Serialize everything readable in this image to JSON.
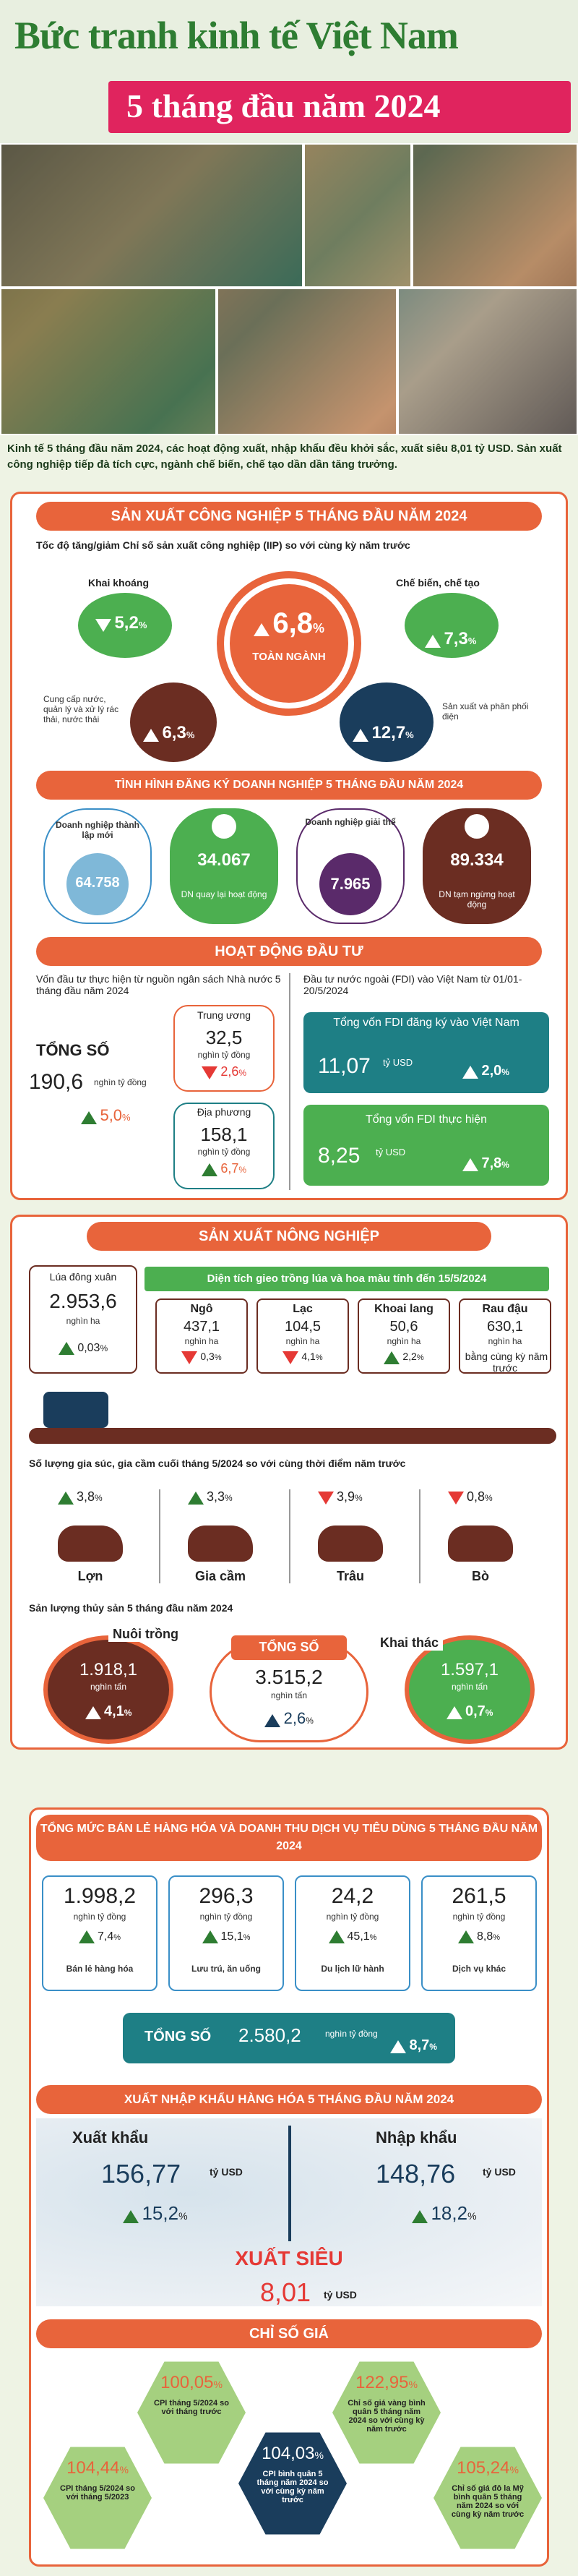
{
  "header": {
    "title": "Bức tranh kinh tế Việt Nam",
    "subtitle": "5 tháng đầu năm 2024",
    "intro": "Kinh tế 5 tháng đầu năm 2024, các hoạt động xuất, nhập khẩu đều khởi sắc, xuất siêu 8,01 tỷ USD. Sản xuất công nghiệp tiếp đà tích cực, ngành chế biến, chế tạo dần dần tăng trưởng."
  },
  "industry": {
    "title": "SẢN XUẤT CÔNG NGHIỆP 5 THÁNG ĐẦU NĂM 2024",
    "caption": "Tốc độ tăng/giảm Chỉ số sản xuất công nghiệp (IIP) so với cùng kỳ năm trước",
    "total_value": "6,8",
    "total_unit": "%",
    "total_label": "TOÀN NGÀNH",
    "mining_label": "Khai khoáng",
    "mining_value": "5,2",
    "manuf_label": "Chế biến, chế tạo",
    "manuf_value": "7,3",
    "water_label": "Cung cấp nước, quản lý và xử lý rác thải, nước thải",
    "water_value": "6,3",
    "power_label": "Sản xuất và phân phối điện",
    "power_value": "12,7",
    "pct": "%"
  },
  "business": {
    "title": "TÌNH HÌNH ĐĂNG KÝ DOANH NGHIỆP 5 THÁNG ĐẦU NĂM 2024",
    "items": [
      {
        "label": "Doanh nghiệp thành lập mới",
        "value": "64.758"
      },
      {
        "label": "DN quay lại hoạt động",
        "value": "34.067"
      },
      {
        "label": "Doanh nghiệp giải thể",
        "value": "7.965"
      },
      {
        "label": "DN tạm ngừng hoạt động",
        "value": "89.334"
      }
    ]
  },
  "investment": {
    "title": "HOẠT ĐỘNG ĐẦU TƯ",
    "state_caption": "Vốn đầu tư thực hiện từ nguồn ngân sách Nhà nước 5 tháng đầu năm 2024",
    "fdi_caption": "Đầu tư nước ngoài (FDI) vào Việt Nam từ 01/01-20/5/2024",
    "total_label": "TỔNG SỐ",
    "total_value": "190,6",
    "total_unit": "nghìn tỷ đồng",
    "total_change": "5,0",
    "central_label": "Trung ương",
    "central_value": "32,5",
    "central_unit": "nghìn tỷ đồng",
    "central_change": "2,6",
    "local_label": "Địa phương",
    "local_value": "158,1",
    "local_unit": "nghìn tỷ đồng",
    "local_change": "6,7",
    "fdi_reg_label": "Tổng vốn FDI đăng ký vào Việt Nam",
    "fdi_reg_value": "11,07",
    "fdi_reg_unit": "tỷ USD",
    "fdi_reg_change": "2,0",
    "fdi_real_label": "Tổng vốn FDI thực hiện",
    "fdi_real_value": "8,25",
    "fdi_real_unit": "tỷ USD",
    "fdi_real_change": "7,8",
    "pct": "%"
  },
  "agriculture": {
    "title": "SẢN XUẤT NÔNG NGHIỆP",
    "rice_label": "Lúa đông xuân",
    "rice_value": "2.953,6",
    "rice_unit": "nghìn ha",
    "rice_change": "0,03",
    "area_caption": "Diện tích gieo trồng lúa và hoa màu tính đến 15/5/2024",
    "crops": [
      {
        "label": "Ngô",
        "value": "437,1",
        "unit": "nghìn ha",
        "change": "0,3",
        "dir": "down"
      },
      {
        "label": "Lạc",
        "value": "104,5",
        "unit": "nghìn ha",
        "change": "4,1",
        "dir": "down"
      },
      {
        "label": "Khoai lang",
        "value": "50,6",
        "unit": "nghìn ha",
        "change": "2,2",
        "dir": "up"
      },
      {
        "label": "Rau đậu",
        "value": "630,1",
        "unit": "nghìn ha",
        "change": "bằng cùng kỳ năm trước",
        "dir": "none"
      }
    ],
    "livestock_caption": "Số lượng gia súc, gia cầm cuối tháng 5/2024 so với cùng thời điểm năm trước",
    "livestock": [
      {
        "label": "Lợn",
        "change": "3,8",
        "dir": "up"
      },
      {
        "label": "Gia cầm",
        "change": "3,3",
        "dir": "up"
      },
      {
        "label": "Trâu",
        "change": "3,9",
        "dir": "down"
      },
      {
        "label": "Bò",
        "change": "0,8",
        "dir": "down"
      }
    ],
    "fish_caption": "Sản lượng thủy sản 5 tháng đầu năm 2024",
    "farm_label": "Nuôi trồng",
    "farm_value": "1.918,1",
    "farm_unit": "nghìn tấn",
    "farm_change": "4,1",
    "fish_total_label": "TỔNG SỐ",
    "fish_total_value": "3.515,2",
    "fish_total_unit": "nghìn tấn",
    "fish_total_change": "2,6",
    "catch_label": "Khai thác",
    "catch_value": "1.597,1",
    "catch_unit": "nghìn tấn",
    "catch_change": "0,7",
    "pct": "%"
  },
  "retail": {
    "title": "TỔNG MỨC BÁN LẺ HÀNG HÓA VÀ DOANH THU DỊCH VỤ TIÊU DÙNG 5 THÁNG ĐẦU NĂM 2024",
    "items": [
      {
        "value": "1.998,2",
        "unit": "nghìn tỷ đồng",
        "change": "7,4",
        "label": "Bán lẻ hàng hóa"
      },
      {
        "value": "296,3",
        "unit": "nghìn tỷ đồng",
        "change": "15,1",
        "label": "Lưu trú, ăn uống"
      },
      {
        "value": "24,2",
        "unit": "nghìn tỷ đồng",
        "change": "45,1",
        "label": "Du lịch lữ hành"
      },
      {
        "value": "261,5",
        "unit": "nghìn tỷ đồng",
        "change": "8,8",
        "label": "Dịch vụ khác"
      }
    ],
    "total_label": "TỔNG SỐ",
    "total_value": "2.580,2",
    "total_unit": "nghìn tỷ đồng",
    "total_change": "8,7",
    "pct": "%"
  },
  "trade": {
    "title": "XUẤT NHẬP KHẨU HÀNG HÓA 5 THÁNG ĐẦU NĂM 2024",
    "export_label": "Xuất khẩu",
    "export_value": "156,77",
    "export_unit": "tỷ USD",
    "export_change": "15,2",
    "import_label": "Nhập khẩu",
    "import_value": "148,76",
    "import_unit": "tỷ USD",
    "import_change": "18,2",
    "surplus_label": "XUẤT SIÊU",
    "surplus_value": "8,01",
    "surplus_unit": "tỷ USD",
    "pct": "%"
  },
  "prices": {
    "title": "CHỈ SỐ GIÁ",
    "items": [
      {
        "value": "104,44",
        "unit": "%",
        "label": "CPI tháng 5/2024 so với tháng 5/2023"
      },
      {
        "value": "100,05",
        "unit": "%",
        "label": "CPI tháng 5/2024 so với tháng trước"
      },
      {
        "value": "104,03",
        "unit": "%",
        "label": "CPI bình quân 5 tháng năm 2024 so với cùng kỳ năm trước"
      },
      {
        "value": "122,95",
        "unit": "%",
        "label": "Chỉ số giá vàng bình quân 5 tháng năm 2024 so với cùng kỳ năm trước"
      },
      {
        "value": "105,24",
        "unit": "%",
        "label": "Chỉ số giá đô la Mỹ bình quân 5 tháng năm 2024 so với cùng kỳ năm trước"
      }
    ]
  },
  "colors": {
    "accent": "#e8643b",
    "green": "#4caf50",
    "brand_title": "#2e7d32",
    "banner": "#e0245e",
    "navy": "#1a3d5c",
    "brown": "#6b2d22"
  }
}
